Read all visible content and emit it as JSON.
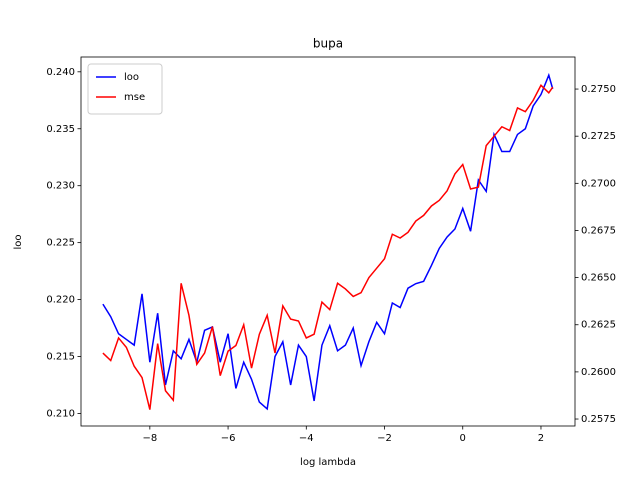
{
  "chart_data": {
    "type": "line",
    "title": "bupa",
    "x_label": "log lambda",
    "y_label": "loo",
    "x": [
      -9.2,
      -9.0,
      -8.8,
      -8.6,
      -8.4,
      -8.2,
      -8.0,
      -7.8,
      -7.6,
      -7.4,
      -7.2,
      -7.0,
      -6.8,
      -6.6,
      -6.4,
      -6.2,
      -6.0,
      -5.8,
      -5.6,
      -5.4,
      -5.2,
      -5.0,
      -4.8,
      -4.6,
      -4.4,
      -4.2,
      -4.0,
      -3.8,
      -3.6,
      -3.4,
      -3.2,
      -3.0,
      -2.8,
      -2.6,
      -2.4,
      -2.2,
      -2.0,
      -1.8,
      -1.6,
      -1.4,
      -1.2,
      -1.0,
      -0.8,
      -0.6,
      -0.4,
      -0.2,
      0.0,
      0.2,
      0.4,
      0.6,
      0.8,
      1.0,
      1.2,
      1.4,
      1.6,
      1.8,
      2.0,
      2.2,
      2.3
    ],
    "series": [
      {
        "name": "loo",
        "color": "#0000ff",
        "axis": "y",
        "values": [
          0.2196,
          0.2185,
          0.217,
          0.2165,
          0.216,
          0.2205,
          0.2145,
          0.2188,
          0.2125,
          0.2155,
          0.2148,
          0.2165,
          0.2145,
          0.2173,
          0.2176,
          0.2145,
          0.217,
          0.2122,
          0.2145,
          0.213,
          0.211,
          0.2104,
          0.215,
          0.2163,
          0.2125,
          0.216,
          0.215,
          0.2111,
          0.216,
          0.2177,
          0.2155,
          0.216,
          0.2175,
          0.2142,
          0.2163,
          0.218,
          0.217,
          0.2197,
          0.2193,
          0.221,
          0.2214,
          0.2216,
          0.223,
          0.2245,
          0.2255,
          0.2262,
          0.228,
          0.226,
          0.2305,
          0.2295,
          0.2345,
          0.233,
          0.233,
          0.2345,
          0.235,
          0.237,
          0.238,
          0.2397,
          0.2385
        ]
      },
      {
        "name": "mse",
        "color": "#ff0000",
        "axis": "y2",
        "values": [
          0.261,
          0.2606,
          0.2618,
          0.2613,
          0.2603,
          0.2597,
          0.258,
          0.2615,
          0.259,
          0.2585,
          0.2647,
          0.263,
          0.2604,
          0.261,
          0.2624,
          0.2598,
          0.2611,
          0.2614,
          0.2625,
          0.2602,
          0.262,
          0.263,
          0.261,
          0.2635,
          0.2628,
          0.2627,
          0.2618,
          0.262,
          0.2637,
          0.2633,
          0.2647,
          0.2644,
          0.264,
          0.2642,
          0.265,
          0.2655,
          0.266,
          0.2673,
          0.2671,
          0.2674,
          0.268,
          0.2683,
          0.2688,
          0.2691,
          0.2696,
          0.2705,
          0.271,
          0.2697,
          0.2698,
          0.272,
          0.2725,
          0.273,
          0.2728,
          0.274,
          0.2738,
          0.2744,
          0.2752,
          0.2748,
          0.2751
        ]
      }
    ],
    "xlim": [
      -9.76,
      2.87
    ],
    "xticks": [
      {
        "value": -8,
        "label": "−8"
      },
      {
        "value": -6,
        "label": "−6"
      },
      {
        "value": -4,
        "label": "−4"
      },
      {
        "value": -2,
        "label": "−2"
      },
      0,
      2
    ],
    "ylim": [
      0.2089,
      0.2413
    ],
    "yticks": [
      {
        "value": 0.21,
        "label": "0.210"
      },
      0.215,
      {
        "value": 0.22,
        "label": "0.220"
      },
      0.225,
      {
        "value": 0.23,
        "label": "0.230"
      },
      0.235,
      {
        "value": 0.24,
        "label": "0.240"
      }
    ],
    "y2lim": [
      0.25713,
      0.2767
    ],
    "y2ticks": [
      0.2575,
      {
        "value": 0.26,
        "label": "0.2600"
      },
      0.2625,
      {
        "value": 0.265,
        "label": "0.2650"
      },
      0.2675,
      {
        "value": 0.27,
        "label": "0.2700"
      },
      0.2725,
      {
        "value": 0.275,
        "label": "0.2750"
      }
    ],
    "legend": "upper left"
  }
}
